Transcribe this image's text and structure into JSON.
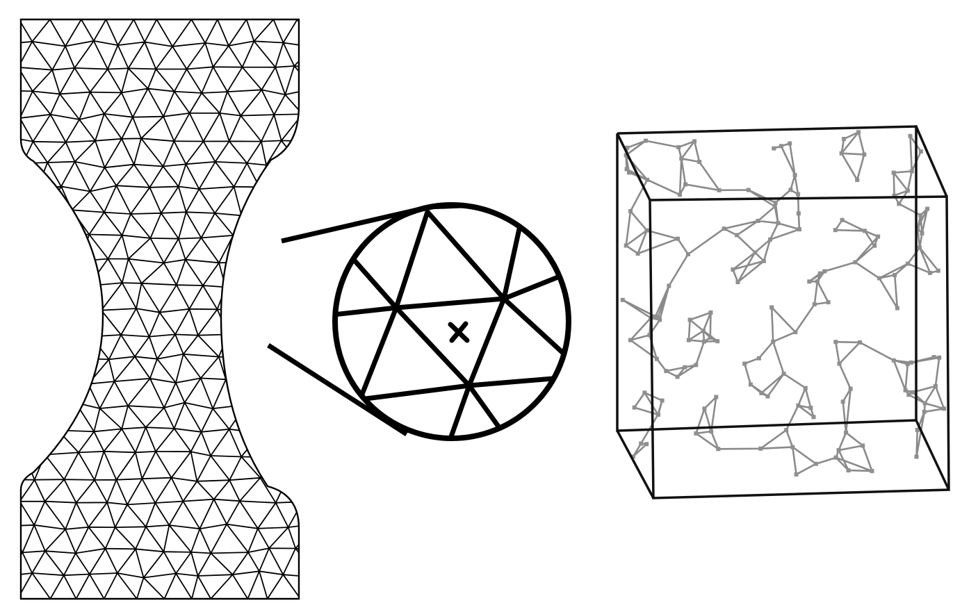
{
  "figure": {
    "panels": [
      {
        "id": "specimen",
        "description_icon": "dogbone-mesh-icon"
      },
      {
        "id": "zoom",
        "description_icon": "magnifier-icon",
        "marker": "cross-icon"
      },
      {
        "id": "network",
        "description_icon": "fiber-network-cube-icon"
      }
    ],
    "colors": {
      "mesh_stroke": "#000000",
      "network_fiber": "#8a8a8a",
      "network_node": "#8f8f8f",
      "box_edge": "#111111",
      "background": "#ffffff"
    }
  }
}
